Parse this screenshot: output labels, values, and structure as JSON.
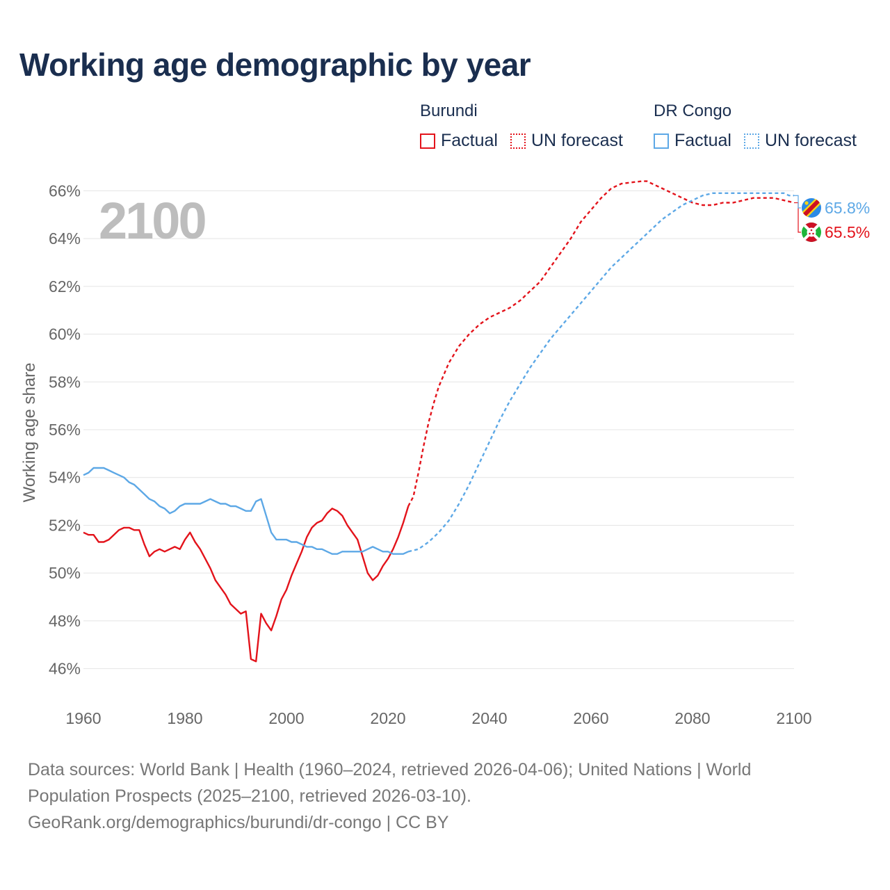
{
  "title": "Working age demographic by year",
  "legend": {
    "groups": [
      {
        "country": "Burundi",
        "factual": "Factual",
        "forecast": "UN forecast"
      },
      {
        "country": "DR Congo",
        "factual": "Factual",
        "forecast": "UN forecast"
      }
    ]
  },
  "colors": {
    "burundi": "#e3131b",
    "drcongo": "#5da8e6",
    "title": "#1a2e4f",
    "year_watermark": "#bdbdbd",
    "grid": "#e4e4e4"
  },
  "chart_data": {
    "type": "line",
    "year_display": "2100",
    "ylabel": "Working age share",
    "xlabel": "",
    "xlim": [
      1960,
      2100
    ],
    "ylim": [
      45,
      67
    ],
    "x_ticks": [
      1960,
      1980,
      2000,
      2020,
      2040,
      2060,
      2080,
      2100
    ],
    "x_tick_labels": [
      "1960",
      "1980",
      "2000",
      "2020",
      "2040",
      "2060",
      "2080",
      "2100"
    ],
    "y_ticks": [
      46,
      48,
      50,
      52,
      54,
      56,
      58,
      60,
      62,
      64,
      66
    ],
    "y_tick_labels": [
      "46%",
      "48%",
      "50%",
      "52%",
      "54%",
      "56%",
      "58%",
      "60%",
      "62%",
      "64%",
      "66%"
    ],
    "series": [
      {
        "name": "Burundi",
        "color": "#e3131b",
        "end_label": "65.5%",
        "flag_icon": "burundi-flag-icon",
        "factual": {
          "x": [
            1960,
            1961,
            1962,
            1963,
            1964,
            1965,
            1966,
            1967,
            1968,
            1969,
            1970,
            1971,
            1972,
            1973,
            1974,
            1975,
            1976,
            1977,
            1978,
            1979,
            1980,
            1981,
            1982,
            1983,
            1984,
            1985,
            1986,
            1987,
            1988,
            1989,
            1990,
            1991,
            1992,
            1993,
            1994,
            1995,
            1996,
            1997,
            1998,
            1999,
            2000,
            2001,
            2002,
            2003,
            2004,
            2005,
            2006,
            2007,
            2008,
            2009,
            2010,
            2011,
            2012,
            2013,
            2014,
            2015,
            2016,
            2017,
            2018,
            2019,
            2020,
            2021,
            2022,
            2023,
            2024
          ],
          "y": [
            51.7,
            51.6,
            51.6,
            51.3,
            51.3,
            51.4,
            51.6,
            51.8,
            51.9,
            51.9,
            51.8,
            51.8,
            51.2,
            50.7,
            50.9,
            51.0,
            50.9,
            51.0,
            51.1,
            51.0,
            51.4,
            51.7,
            51.3,
            51.0,
            50.6,
            50.2,
            49.7,
            49.4,
            49.1,
            48.7,
            48.5,
            48.3,
            48.4,
            46.4,
            46.3,
            48.3,
            47.9,
            47.6,
            48.2,
            48.9,
            49.3,
            49.9,
            50.4,
            50.9,
            51.5,
            51.9,
            52.1,
            52.2,
            52.5,
            52.7,
            52.6,
            52.4,
            52.0,
            51.7,
            51.4,
            50.7,
            50.0,
            49.7,
            49.9,
            50.3,
            50.6,
            51.0,
            51.5,
            52.1,
            52.8
          ]
        },
        "forecast": {
          "x": [
            2024,
            2025,
            2026,
            2027,
            2028,
            2029,
            2030,
            2032,
            2034,
            2036,
            2038,
            2040,
            2042,
            2044,
            2046,
            2048,
            2050,
            2052,
            2054,
            2056,
            2058,
            2060,
            2062,
            2064,
            2066,
            2068,
            2070,
            2071,
            2072,
            2074,
            2076,
            2078,
            2080,
            2082,
            2084,
            2086,
            2088,
            2090,
            2092,
            2094,
            2096,
            2098,
            2100
          ],
          "y": [
            52.8,
            53.2,
            54.2,
            55.3,
            56.3,
            57.1,
            57.8,
            58.8,
            59.5,
            60.0,
            60.4,
            60.7,
            60.9,
            61.1,
            61.4,
            61.8,
            62.2,
            62.8,
            63.4,
            64.0,
            64.7,
            65.2,
            65.7,
            66.1,
            66.3,
            66.35,
            66.4,
            66.4,
            66.3,
            66.1,
            65.9,
            65.7,
            65.5,
            65.4,
            65.4,
            65.5,
            65.5,
            65.6,
            65.7,
            65.7,
            65.7,
            65.6,
            65.5
          ]
        }
      },
      {
        "name": "DR Congo",
        "color": "#5da8e6",
        "end_label": "65.8%",
        "flag_icon": "drcongo-flag-icon",
        "factual": {
          "x": [
            1960,
            1961,
            1962,
            1963,
            1964,
            1965,
            1966,
            1967,
            1968,
            1969,
            1970,
            1971,
            1972,
            1973,
            1974,
            1975,
            1976,
            1977,
            1978,
            1979,
            1980,
            1981,
            1982,
            1983,
            1984,
            1985,
            1986,
            1987,
            1988,
            1989,
            1990,
            1991,
            1992,
            1993,
            1994,
            1995,
            1996,
            1997,
            1998,
            1999,
            2000,
            2001,
            2002,
            2003,
            2004,
            2005,
            2006,
            2007,
            2008,
            2009,
            2010,
            2011,
            2012,
            2013,
            2014,
            2015,
            2016,
            2017,
            2018,
            2019,
            2020,
            2021,
            2022,
            2023,
            2024
          ],
          "y": [
            54.1,
            54.2,
            54.4,
            54.4,
            54.4,
            54.3,
            54.2,
            54.1,
            54.0,
            53.8,
            53.7,
            53.5,
            53.3,
            53.1,
            53.0,
            52.8,
            52.7,
            52.5,
            52.6,
            52.8,
            52.9,
            52.9,
            52.9,
            52.9,
            53.0,
            53.1,
            53.0,
            52.9,
            52.9,
            52.8,
            52.8,
            52.7,
            52.6,
            52.6,
            53.0,
            53.1,
            52.4,
            51.7,
            51.4,
            51.4,
            51.4,
            51.3,
            51.3,
            51.2,
            51.1,
            51.1,
            51.0,
            51.0,
            50.9,
            50.8,
            50.8,
            50.9,
            50.9,
            50.9,
            50.9,
            50.9,
            51.0,
            51.1,
            51.0,
            50.9,
            50.9,
            50.8,
            50.8,
            50.8,
            50.9
          ]
        },
        "forecast": {
          "x": [
            2024,
            2026,
            2028,
            2030,
            2032,
            2034,
            2036,
            2038,
            2040,
            2042,
            2044,
            2046,
            2048,
            2050,
            2052,
            2054,
            2056,
            2058,
            2060,
            2062,
            2064,
            2066,
            2068,
            2070,
            2072,
            2074,
            2076,
            2078,
            2080,
            2082,
            2084,
            2086,
            2088,
            2090,
            2092,
            2094,
            2096,
            2098,
            2099,
            2100
          ],
          "y": [
            50.9,
            51.0,
            51.3,
            51.7,
            52.2,
            52.9,
            53.7,
            54.6,
            55.5,
            56.4,
            57.2,
            57.9,
            58.6,
            59.2,
            59.8,
            60.3,
            60.8,
            61.3,
            61.8,
            62.3,
            62.8,
            63.2,
            63.6,
            64.0,
            64.4,
            64.8,
            65.1,
            65.4,
            65.6,
            65.8,
            65.9,
            65.9,
            65.9,
            65.9,
            65.9,
            65.9,
            65.9,
            65.9,
            65.8,
            65.8
          ]
        }
      }
    ]
  },
  "footer": {
    "sources": "Data sources: World Bank | Health (1960–2024, retrieved 2026-04-06); United Nations | World Population Prospects (2025–2100, retrieved 2026-03-10).",
    "attribution": "GeoRank.org/demographics/burundi/dr-congo | CC BY"
  }
}
